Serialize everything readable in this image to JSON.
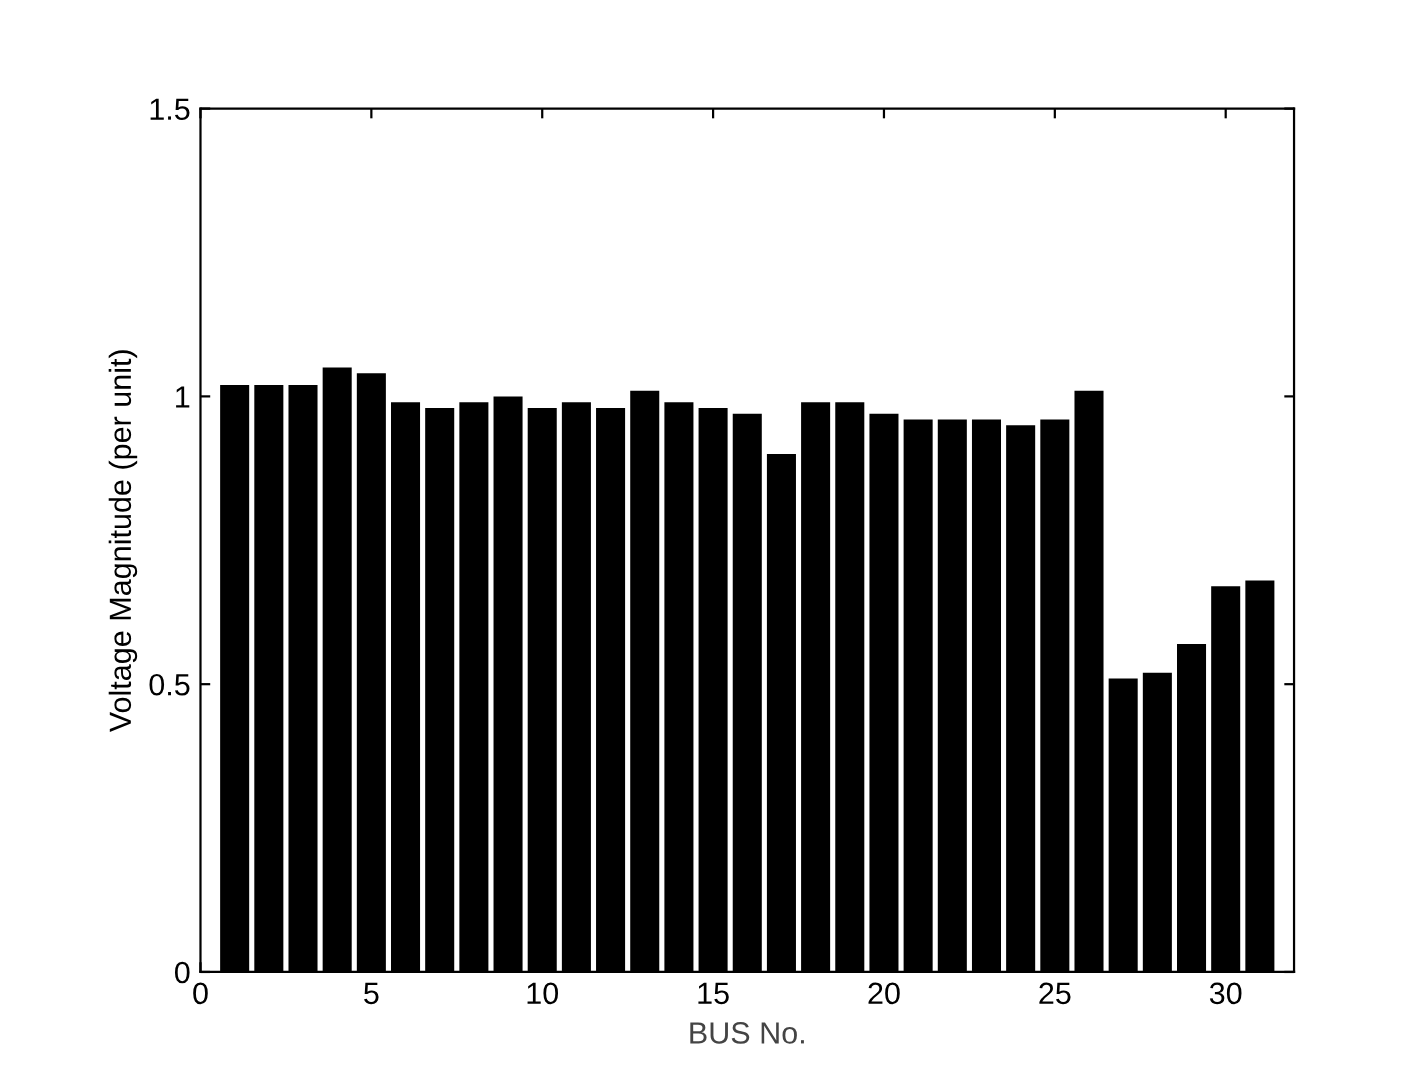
{
  "chart_data": {
    "type": "bar",
    "xlabel": "BUS No.",
    "ylabel": "Voltage Magnitude (per unit)",
    "x": [
      1,
      2,
      3,
      4,
      5,
      6,
      7,
      8,
      9,
      10,
      11,
      12,
      13,
      14,
      15,
      16,
      17,
      18,
      19,
      20,
      21,
      22,
      23,
      24,
      25,
      26,
      27,
      28,
      29,
      30,
      31
    ],
    "values": [
      1.02,
      1.02,
      1.02,
      1.05,
      1.04,
      0.99,
      0.98,
      0.99,
      1.0,
      0.98,
      0.99,
      0.98,
      1.01,
      0.99,
      0.98,
      0.97,
      0.9,
      0.99,
      0.99,
      0.97,
      0.96,
      0.96,
      0.96,
      0.95,
      0.96,
      1.01,
      0.51,
      0.52,
      0.57,
      0.67,
      0.68
    ],
    "color": "#000000",
    "xlim": [
      0,
      32
    ],
    "xticks": [
      0,
      5,
      10,
      15,
      20,
      25,
      30
    ],
    "ylim": [
      0,
      1.5
    ],
    "yticks": [
      0,
      0.5,
      1,
      1.5
    ],
    "grid": false
  }
}
